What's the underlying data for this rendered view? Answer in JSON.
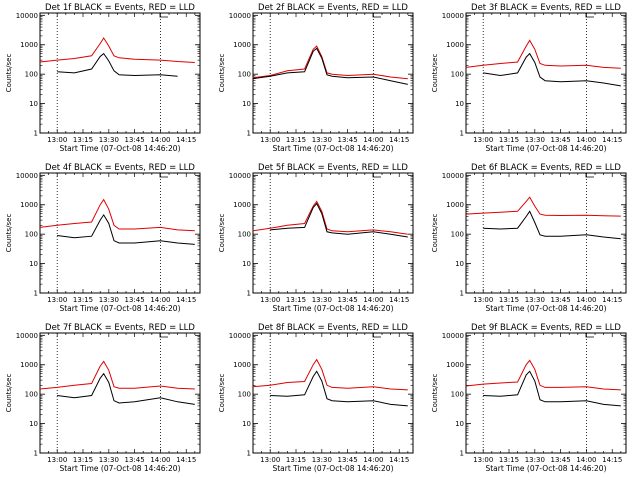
{
  "figure": {
    "ylabel": "Counts/sec",
    "xlabel": "Start Time (07-Oct-08 14:46:20)",
    "series_names": [
      "Events",
      "LLD"
    ],
    "series_colors": {
      "Events": "#000000",
      "LLD": "#e00000"
    },
    "y_tick_labels": [
      "1",
      "10",
      "100",
      "1000",
      "10000"
    ],
    "x_tick_labels": [
      "13:00",
      "13:15",
      "13:30",
      "13:45",
      "14:00",
      "14:15"
    ],
    "y_scale": "log",
    "gridlines": "dotted vertical lines at about 13:00 and 14:00"
  },
  "chart_data": [
    {
      "type": "line",
      "title": "Det 1f BLACK = Events, RED = LLD",
      "ylim": [
        1,
        12000
      ],
      "xlim": [
        "12:50",
        "14:23"
      ],
      "x": [
        "12:50",
        "13:00",
        "13:10",
        "13:20",
        "13:25",
        "13:27",
        "13:30",
        "13:33",
        "13:36",
        "13:45",
        "14:00",
        "14:10",
        "14:20"
      ],
      "series": [
        {
          "name": "LLD",
          "color": "#e00000",
          "values": [
            260,
            300,
            340,
            420,
            1100,
            1700,
            900,
            420,
            360,
            320,
            300,
            270,
            250
          ]
        },
        {
          "name": "Events",
          "color": "#000000",
          "values": [
            null,
            120,
            110,
            150,
            400,
            500,
            280,
            130,
            95,
            90,
            95,
            85,
            null
          ]
        }
      ]
    },
    {
      "type": "line",
      "title": "Det 2f BLACK = Events, RED = LLD",
      "ylim": [
        1,
        12000
      ],
      "xlim": [
        "12:50",
        "14:23"
      ],
      "x": [
        "12:50",
        "13:00",
        "13:10",
        "13:20",
        "13:25",
        "13:27",
        "13:30",
        "13:33",
        "13:36",
        "13:45",
        "14:00",
        "14:10",
        "14:20"
      ],
      "series": [
        {
          "name": "LLD",
          "color": "#e00000",
          "values": [
            75,
            90,
            130,
            150,
            700,
            900,
            400,
            110,
            100,
            90,
            100,
            80,
            70
          ]
        },
        {
          "name": "Events",
          "color": "#000000",
          "values": [
            70,
            85,
            110,
            120,
            600,
            750,
            350,
            95,
            85,
            75,
            80,
            60,
            45
          ]
        }
      ]
    },
    {
      "type": "line",
      "title": "Det 3f BLACK = Events, RED = LLD",
      "ylim": [
        1,
        12000
      ],
      "xlim": [
        "12:50",
        "14:23"
      ],
      "x": [
        "12:50",
        "13:00",
        "13:10",
        "13:20",
        "13:25",
        "13:27",
        "13:30",
        "13:33",
        "13:36",
        "13:45",
        "14:00",
        "14:10",
        "14:20"
      ],
      "series": [
        {
          "name": "LLD",
          "color": "#e00000",
          "values": [
            170,
            200,
            230,
            260,
            900,
            1400,
            700,
            230,
            200,
            190,
            200,
            170,
            160
          ]
        },
        {
          "name": "Events",
          "color": "#000000",
          "values": [
            null,
            110,
            90,
            110,
            380,
            500,
            250,
            80,
            60,
            55,
            60,
            50,
            40
          ]
        }
      ]
    },
    {
      "type": "line",
      "title": "Det 4f BLACK = Events, RED = LLD",
      "ylim": [
        1,
        12000
      ],
      "xlim": [
        "12:50",
        "14:23"
      ],
      "x": [
        "12:50",
        "13:00",
        "13:10",
        "13:20",
        "13:25",
        "13:27",
        "13:30",
        "13:33",
        "13:36",
        "13:45",
        "14:00",
        "14:10",
        "14:20"
      ],
      "series": [
        {
          "name": "LLD",
          "color": "#e00000",
          "values": [
            170,
            200,
            230,
            260,
            1000,
            1500,
            700,
            200,
            150,
            150,
            170,
            140,
            130
          ]
        },
        {
          "name": "Events",
          "color": "#000000",
          "values": [
            null,
            90,
            75,
            85,
            300,
            450,
            230,
            60,
            50,
            50,
            60,
            50,
            45
          ]
        }
      ]
    },
    {
      "type": "line",
      "title": "Det 5f BLACK = Events, RED = LLD",
      "ylim": [
        1,
        12000
      ],
      "xlim": [
        "12:50",
        "14:23"
      ],
      "x": [
        "12:50",
        "13:00",
        "13:10",
        "13:20",
        "13:25",
        "13:27",
        "13:30",
        "13:33",
        "13:36",
        "13:45",
        "14:00",
        "14:10",
        "14:20"
      ],
      "series": [
        {
          "name": "LLD",
          "color": "#e00000",
          "values": [
            130,
            160,
            200,
            230,
            900,
            1300,
            600,
            150,
            130,
            120,
            140,
            120,
            100
          ]
        },
        {
          "name": "Events",
          "color": "#000000",
          "values": [
            null,
            140,
            160,
            170,
            800,
            1100,
            500,
            120,
            110,
            100,
            120,
            100,
            80
          ]
        }
      ]
    },
    {
      "type": "line",
      "title": "Det 6f BLACK = Events, RED = LLD",
      "ylim": [
        1,
        12000
      ],
      "xlim": [
        "12:50",
        "14:23"
      ],
      "x": [
        "12:50",
        "13:00",
        "13:10",
        "13:20",
        "13:25",
        "13:27",
        "13:30",
        "13:33",
        "13:36",
        "13:45",
        "14:00",
        "14:10",
        "14:20"
      ],
      "series": [
        {
          "name": "LLD",
          "color": "#e00000",
          "values": [
            480,
            520,
            560,
            600,
            1300,
            1800,
            900,
            480,
            440,
            430,
            440,
            420,
            410
          ]
        },
        {
          "name": "Events",
          "color": "#000000",
          "values": [
            null,
            160,
            150,
            160,
            400,
            600,
            250,
            95,
            85,
            85,
            95,
            80,
            70
          ]
        }
      ]
    },
    {
      "type": "line",
      "title": "Det 7f BLACK = Events, RED = LLD",
      "ylim": [
        1,
        12000
      ],
      "xlim": [
        "12:50",
        "14:23"
      ],
      "x": [
        "12:50",
        "13:00",
        "13:10",
        "13:20",
        "13:25",
        "13:27",
        "13:30",
        "13:33",
        "13:36",
        "13:45",
        "14:00",
        "14:10",
        "14:20"
      ],
      "series": [
        {
          "name": "LLD",
          "color": "#e00000",
          "values": [
            150,
            170,
            200,
            230,
            900,
            1300,
            650,
            180,
            160,
            160,
            190,
            160,
            150
          ]
        },
        {
          "name": "Events",
          "color": "#000000",
          "values": [
            null,
            90,
            75,
            90,
            350,
            500,
            250,
            60,
            50,
            55,
            75,
            55,
            45
          ]
        }
      ]
    },
    {
      "type": "line",
      "title": "Det 8f BLACK = Events, RED = LLD",
      "ylim": [
        1,
        12000
      ],
      "xlim": [
        "12:50",
        "14:23"
      ],
      "x": [
        "12:50",
        "13:00",
        "13:10",
        "13:20",
        "13:25",
        "13:27",
        "13:30",
        "13:33",
        "13:36",
        "13:45",
        "14:00",
        "14:10",
        "14:20"
      ],
      "series": [
        {
          "name": "LLD",
          "color": "#e00000",
          "values": [
            180,
            200,
            250,
            270,
            1000,
            1500,
            700,
            200,
            170,
            160,
            180,
            150,
            140
          ]
        },
        {
          "name": "Events",
          "color": "#000000",
          "values": [
            null,
            90,
            85,
            95,
            400,
            600,
            280,
            70,
            60,
            55,
            60,
            45,
            40
          ]
        }
      ]
    },
    {
      "type": "line",
      "title": "Det 9f BLACK = Events, RED = LLD",
      "ylim": [
        1,
        12000
      ],
      "xlim": [
        "12:50",
        "14:23"
      ],
      "x": [
        "12:50",
        "13:00",
        "13:10",
        "13:20",
        "13:25",
        "13:27",
        "13:30",
        "13:33",
        "13:36",
        "13:45",
        "14:00",
        "14:10",
        "14:20"
      ],
      "series": [
        {
          "name": "LLD",
          "color": "#e00000",
          "values": [
            190,
            220,
            240,
            260,
            1000,
            1400,
            700,
            200,
            170,
            170,
            180,
            150,
            140
          ]
        },
        {
          "name": "Events",
          "color": "#000000",
          "values": [
            null,
            90,
            85,
            95,
            450,
            600,
            280,
            65,
            55,
            55,
            60,
            45,
            40
          ]
        }
      ]
    }
  ]
}
